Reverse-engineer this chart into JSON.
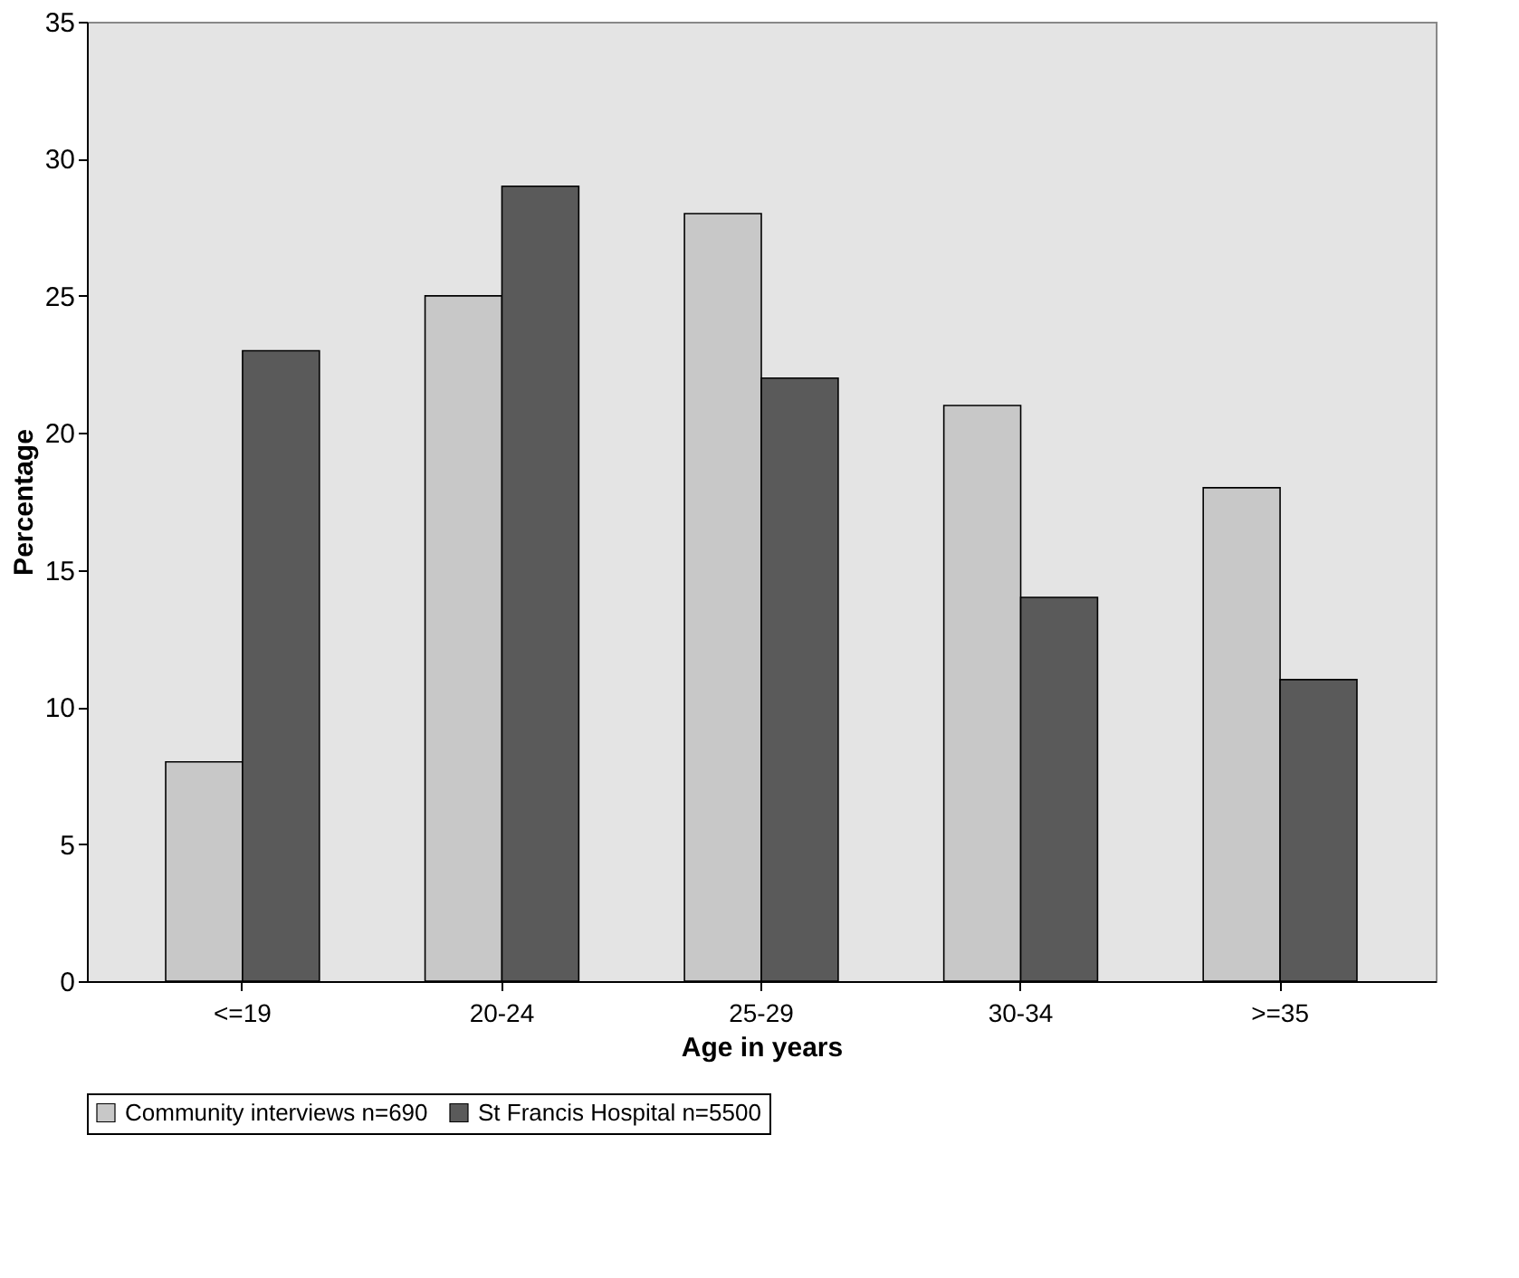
{
  "chart_data": {
    "type": "bar",
    "xlabel": "Age in years",
    "ylabel": "Percentage",
    "categories": [
      "<=19",
      "20-24",
      "25-29",
      "30-34",
      ">=35"
    ],
    "series": [
      {
        "name": "Community interviews n=690",
        "color": "#c8c8c8",
        "values": [
          8,
          25,
          28,
          21,
          18
        ]
      },
      {
        "name": "St Francis Hospital n=5500",
        "color": "#5a5a5a",
        "values": [
          23,
          29,
          22,
          14,
          11
        ]
      }
    ],
    "ylim": [
      0,
      35
    ],
    "yticks": [
      0,
      5,
      10,
      15,
      20,
      25,
      30,
      35
    ],
    "grid": false,
    "legend": "bottom"
  }
}
